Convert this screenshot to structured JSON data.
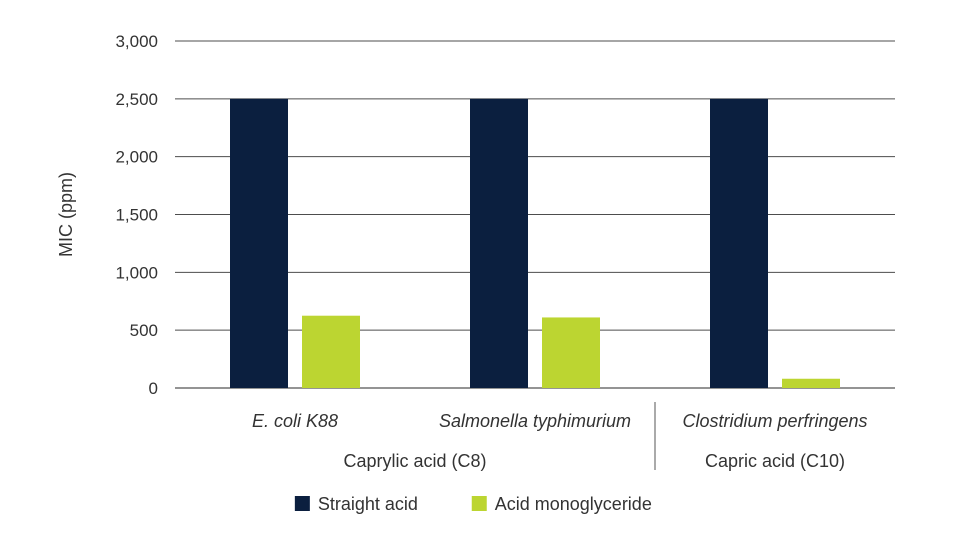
{
  "chart_data": {
    "type": "bar",
    "ylabel": "MIC (ppm)",
    "ylim": [
      0,
      3000
    ],
    "yticks": [
      0,
      500,
      1000,
      1500,
      2000,
      2500,
      3000
    ],
    "ytick_labels": [
      "0",
      "500",
      "1,000",
      "1,500",
      "2,000",
      "2,500",
      "3,000"
    ],
    "grid": true,
    "categories": [
      "E. coli K88",
      "Salmonella typhimurium",
      "Clostridium perfringens"
    ],
    "groups": [
      {
        "label": "Caprylic acid (C8)",
        "categories": [
          "E. coli K88",
          "Salmonella typhimurium"
        ]
      },
      {
        "label": "Capric acid (C10)",
        "categories": [
          "Clostridium perfringens"
        ]
      }
    ],
    "series": [
      {
        "name": "Straight acid",
        "color": "#0b1f3f",
        "values": [
          2500,
          2500,
          2500
        ]
      },
      {
        "name": "Acid monoglyceride",
        "color": "#bcd531",
        "values": [
          625,
          610,
          80
        ]
      }
    ],
    "legend_position": "bottom-center"
  }
}
